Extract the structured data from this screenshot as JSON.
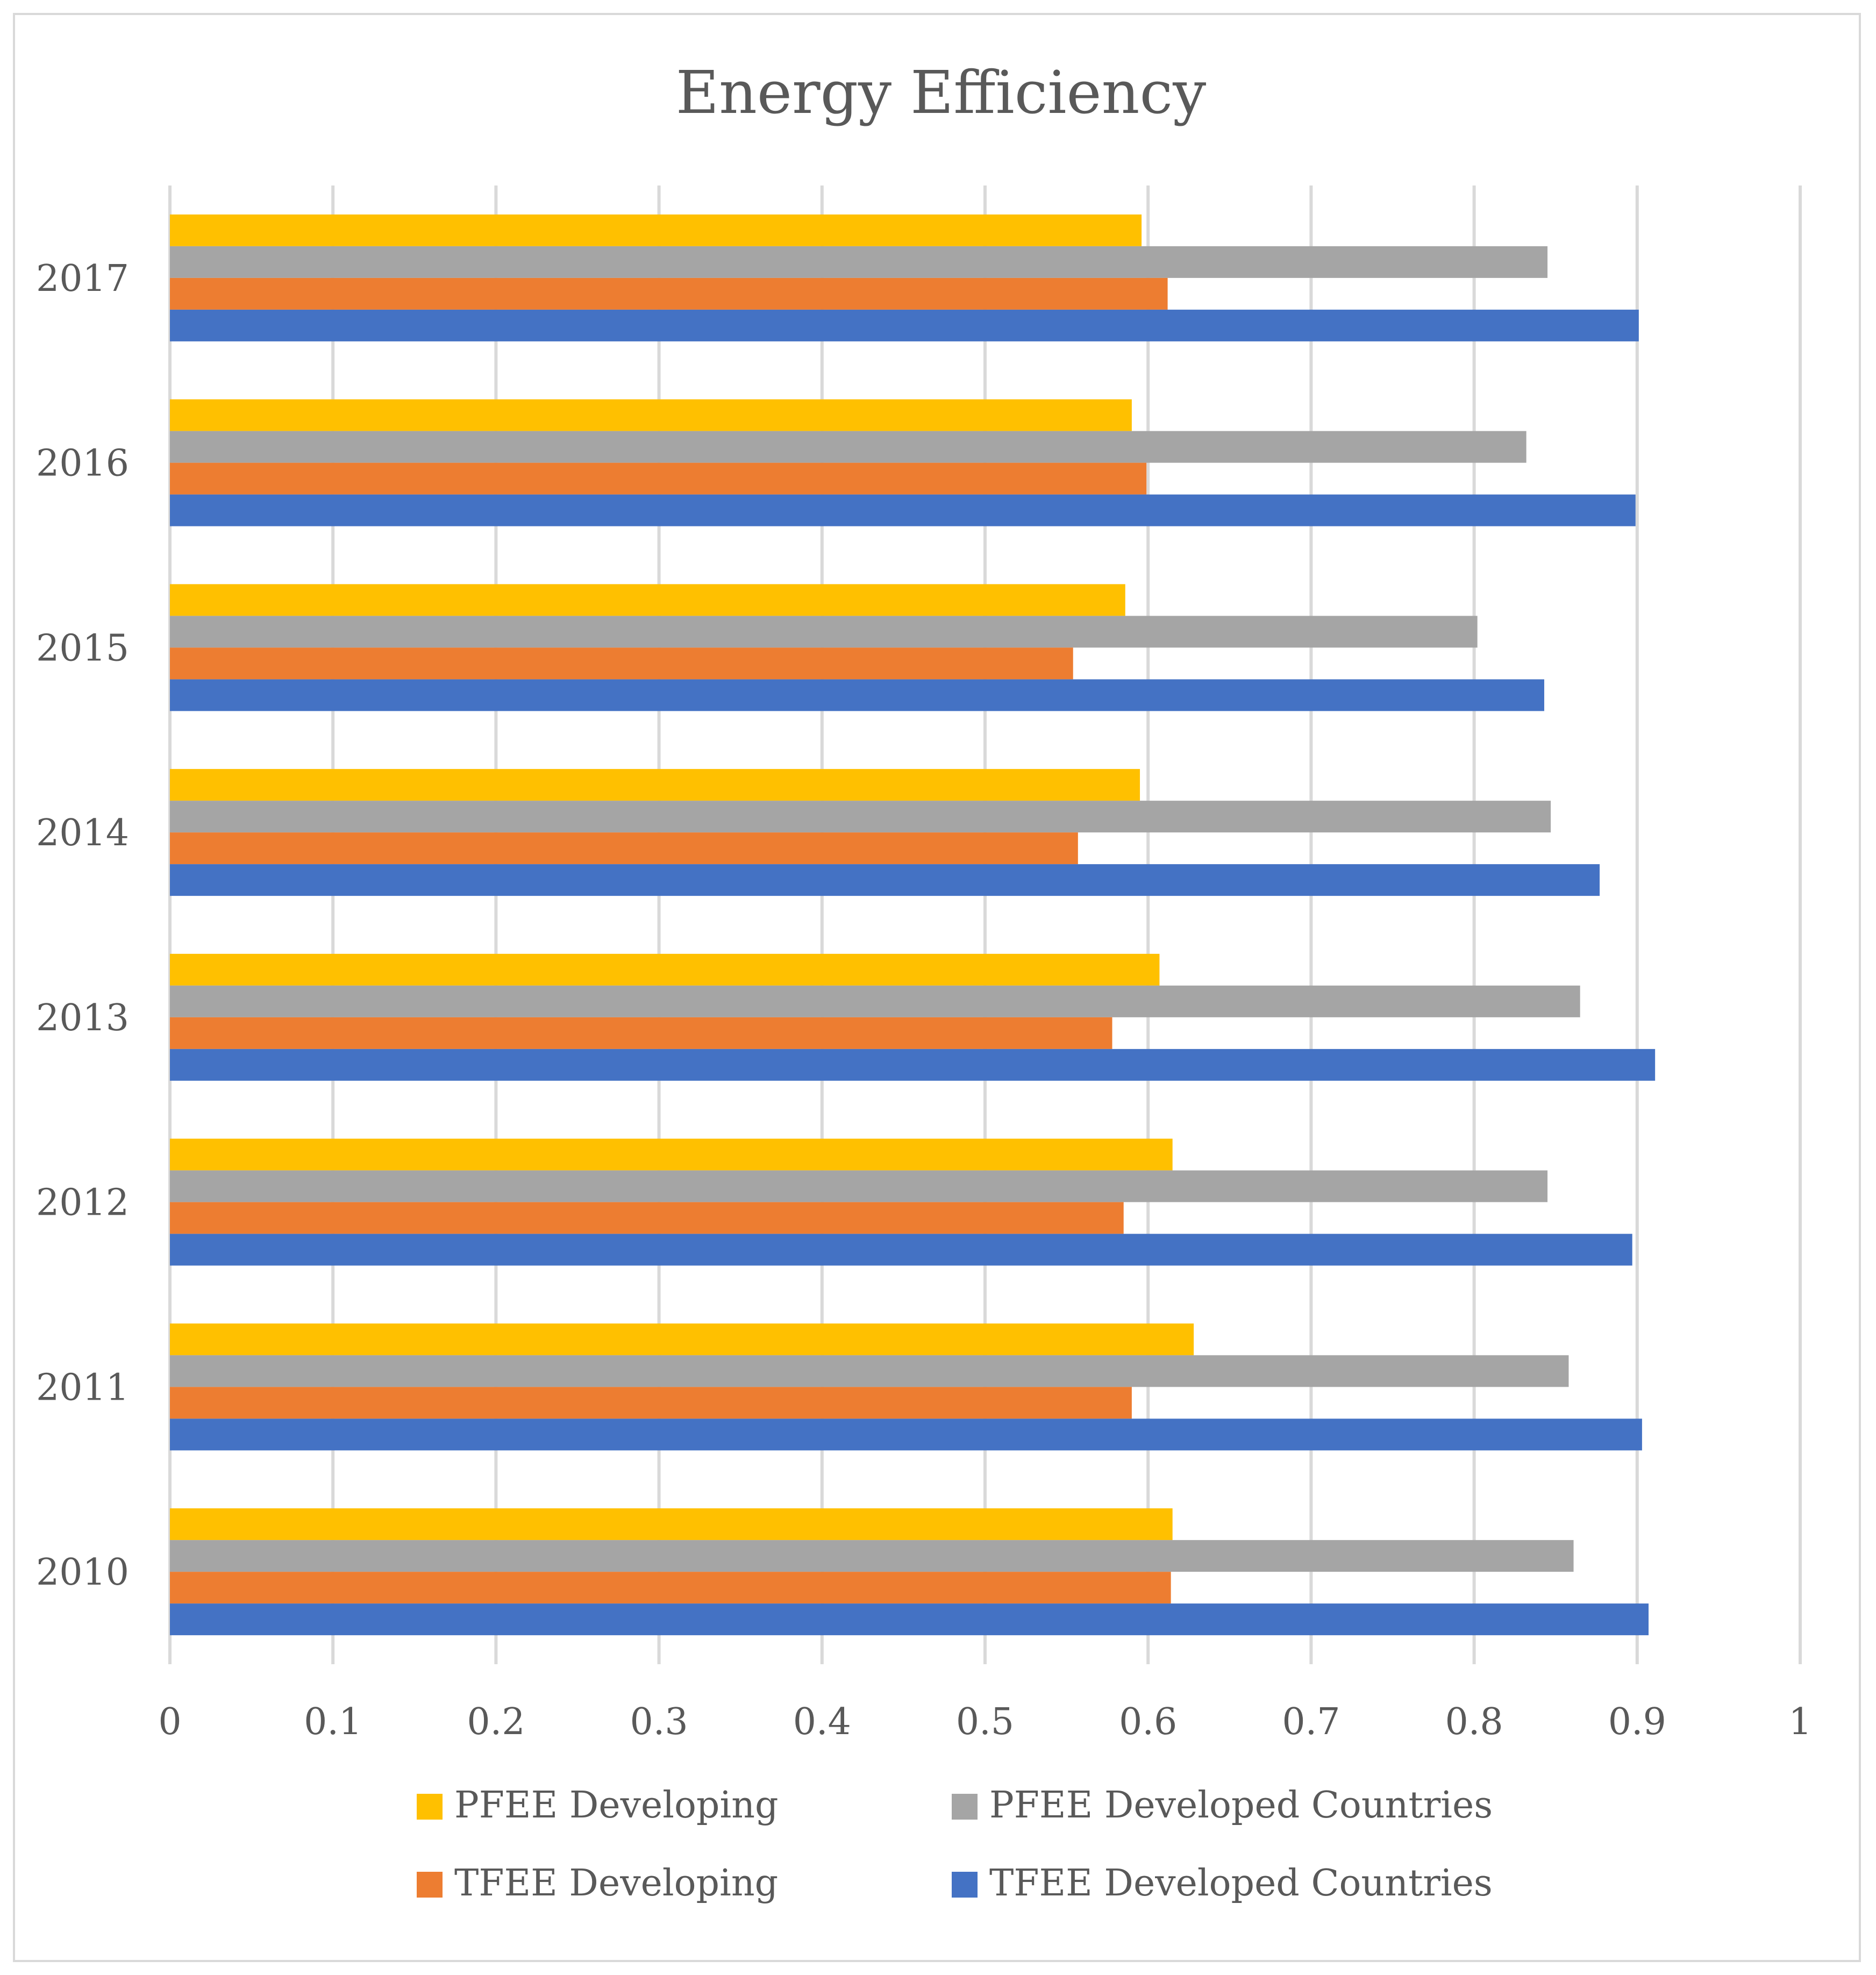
{
  "chart_data": {
    "type": "bar",
    "orientation": "horizontal",
    "title": "Energy Efficiency",
    "categories": [
      "2010",
      "2011",
      "2012",
      "2013",
      "2014",
      "2015",
      "2016",
      "2017"
    ],
    "xlim": [
      0,
      1
    ],
    "x_ticks": [
      "0",
      "0.1",
      "0.2",
      "0.3",
      "0.4",
      "0.5",
      "0.6",
      "0.7",
      "0.8",
      "0.9",
      "1"
    ],
    "grid": true,
    "legend_position": "bottom",
    "series": [
      {
        "name": "PFEE Developing",
        "color": "#FFC000",
        "values": [
          0.615,
          0.628,
          0.615,
          0.607,
          0.595,
          0.586,
          0.59,
          0.596
        ]
      },
      {
        "name": "PFEE Developed Countries",
        "color": "#A5A5A5",
        "values": [
          0.861,
          0.858,
          0.845,
          0.865,
          0.847,
          0.802,
          0.832,
          0.845
        ]
      },
      {
        "name": "TFEE Developing",
        "color": "#ED7D31",
        "values": [
          0.614,
          0.59,
          0.585,
          0.578,
          0.557,
          0.554,
          0.599,
          0.612
        ]
      },
      {
        "name": "TFEE Developed Countries",
        "color": "#4472C4",
        "values": [
          0.907,
          0.903,
          0.897,
          0.911,
          0.877,
          0.843,
          0.899,
          0.901
        ]
      }
    ]
  }
}
